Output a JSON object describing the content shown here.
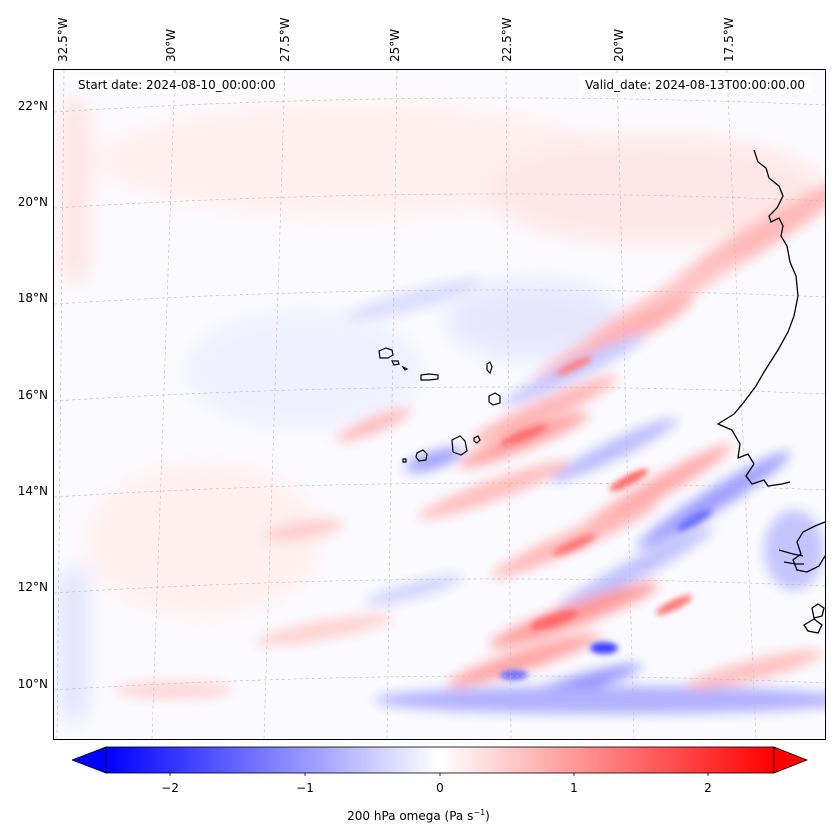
{
  "map": {
    "start_date": "Start date: 2024-08-10_00:00:00",
    "valid_date": "Valid_date: 2024-08-13T00:00:00.00",
    "variable": "200 hPa omega",
    "units_text": "(Pa s",
    "units_exp": "−1",
    "units_close": ")",
    "projection": "lambert-conformal",
    "region": "Eastern tropical Atlantic / Cabo Verde / West African coast",
    "extent": {
      "lon_min": -33,
      "lon_max": -15.5,
      "lat_min": 8.8,
      "lat_max": 22.8
    },
    "gridlines": true
  },
  "lon_labels": [
    "32.5°W",
    "30°W",
    "27.5°W",
    "25°W",
    "22.5°W",
    "20°W",
    "17.5°W"
  ],
  "lat_labels": [
    "22°N",
    "20°N",
    "18°N",
    "16°N",
    "14°N",
    "12°N",
    "10°N"
  ],
  "colorbar": {
    "colormap": "bwr",
    "min": -2.5,
    "max": 2.5,
    "extend": "both",
    "ticks": [
      "−2",
      "−1",
      "0",
      "1",
      "2"
    ],
    "tick_values": [
      -2,
      -1,
      0,
      1,
      2
    ],
    "colors": {
      "negative": "#0000ff",
      "zero": "#ffffff",
      "positive": "#ff0000"
    }
  }
}
